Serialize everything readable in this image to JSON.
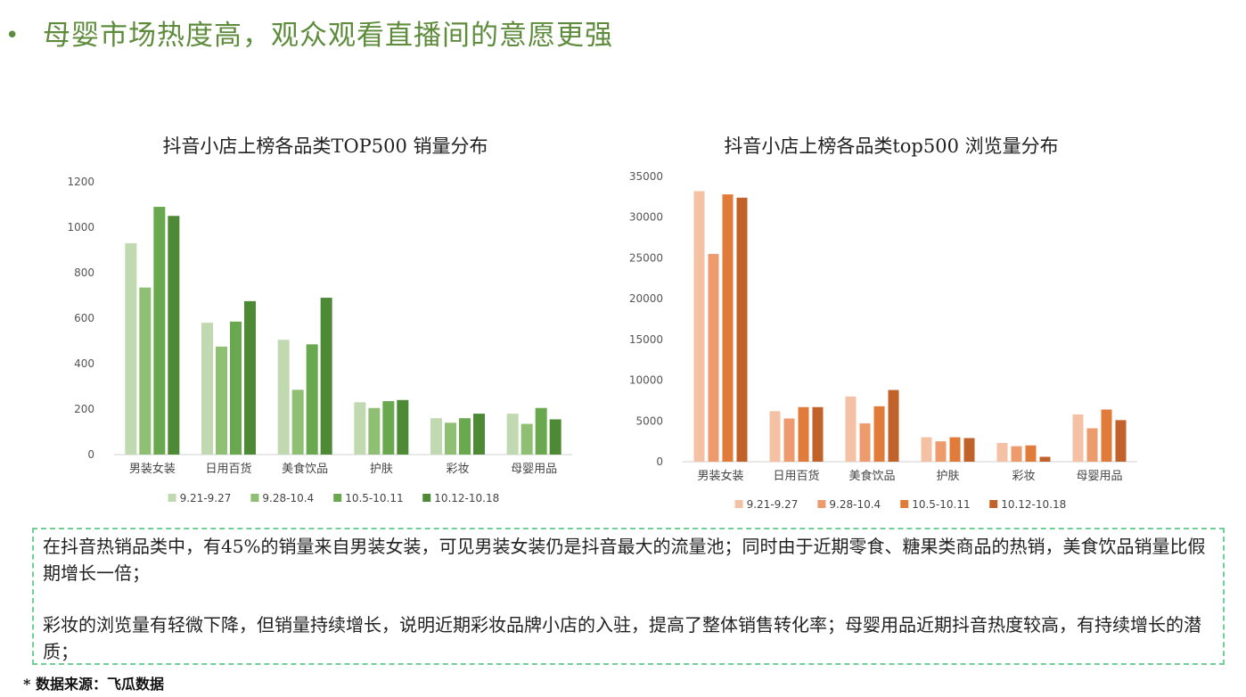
{
  "page": {
    "bullet": "•",
    "title": "母婴市场热度高，观众观看直播间的意愿更强"
  },
  "notes": {
    "paragraph_1": "在抖音热销品类中，有45%的销量来自男装女装，可见男装女装仍是抖音最大的流量池；同时由于近期零食、糖果类商品的热销，美食饮品销量比假期增长一倍；",
    "paragraph_2": "彩妆的浏览量有轻微下降，但销量持续增长，说明近期彩妆品牌小店的入驻，提高了整体销售转化率；母婴用品近期抖音热度较高，有持续增长的潜质；"
  },
  "source": "* 数据来源：飞瓜数据",
  "chart_data": [
    {
      "type": "bar",
      "title": "抖音小店上榜各品类TOP500 销量分布",
      "categories": [
        "男装女装",
        "日用百货",
        "美食饮品",
        "护肤",
        "彩妆",
        "母婴用品"
      ],
      "ylim": [
        0,
        1200
      ],
      "yticks": [
        0,
        200,
        400,
        600,
        800,
        1000,
        1200
      ],
      "grid": false,
      "legend_position": "bottom",
      "series": [
        {
          "name": "9.21-9.27",
          "color": "#c1d9b0",
          "values": [
            930,
            580,
            505,
            230,
            160,
            180
          ]
        },
        {
          "name": "9.28-10.4",
          "color": "#8fbf73",
          "values": [
            735,
            475,
            285,
            205,
            140,
            135
          ]
        },
        {
          "name": "10.5-10.11",
          "color": "#6aa84f",
          "values": [
            1090,
            585,
            485,
            235,
            160,
            205
          ]
        },
        {
          "name": "10.12-10.18",
          "color": "#4e8a36",
          "values": [
            1050,
            675,
            690,
            240,
            180,
            155
          ]
        }
      ]
    },
    {
      "type": "bar",
      "title": "抖音小店上榜各品类top500 浏览量分布",
      "categories": [
        "男装女装",
        "日用百货",
        "美食饮品",
        "护肤",
        "彩妆",
        "母婴用品"
      ],
      "ylim": [
        0,
        35000
      ],
      "yticks": [
        0,
        5000,
        10000,
        15000,
        20000,
        25000,
        30000,
        35000
      ],
      "grid": false,
      "legend_position": "bottom",
      "series": [
        {
          "name": "9.21-9.27",
          "color": "#f4c1a5",
          "values": [
            33200,
            6200,
            8000,
            3000,
            2300,
            5800
          ]
        },
        {
          "name": "9.28-10.4",
          "color": "#ed9a6c",
          "values": [
            25500,
            5300,
            4700,
            2500,
            1900,
            4100
          ]
        },
        {
          "name": "10.5-10.11",
          "color": "#e07b39",
          "values": [
            32800,
            6700,
            6800,
            3000,
            2000,
            6400
          ]
        },
        {
          "name": "10.12-10.18",
          "color": "#c0622a",
          "values": [
            32400,
            6700,
            8800,
            2900,
            600,
            5100
          ]
        }
      ]
    }
  ]
}
